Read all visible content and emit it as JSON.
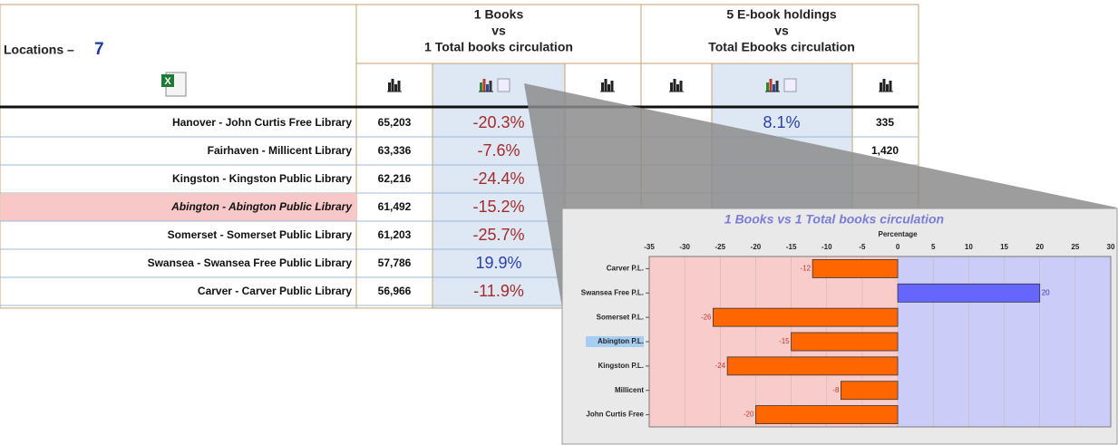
{
  "header": {
    "locations_label": "Locations –",
    "locations_count": "7",
    "groups": [
      {
        "lines": [
          "1 Books",
          "vs",
          "1 Total books circulation"
        ]
      },
      {
        "lines": [
          "5 E-book holdings",
          "vs",
          "Total Ebooks circulation"
        ]
      }
    ]
  },
  "table": {
    "selected_row": 3,
    "rows": [
      {
        "name": "Hanover - John Curtis Free Library",
        "count": "65,203",
        "pct": "-20.3%",
        "ebook_pct": "8.1%",
        "ebook_circ": "335"
      },
      {
        "name": "Fairhaven - Millicent Library",
        "count": "63,336",
        "pct": "-7.6%",
        "ebook_circ": "1,420"
      },
      {
        "name": "Kingston - Kingston Public Library",
        "count": "62,216",
        "pct": "-24.4%"
      },
      {
        "name": "Abington - Abington Public Library",
        "count": "61,492",
        "pct": "-15.2%"
      },
      {
        "name": "Somerset - Somerset Public Library",
        "count": "61,203",
        "pct": "-25.7%"
      },
      {
        "name": "Swansea - Swansea Free Public Library",
        "count": "57,786",
        "pct": "19.9%"
      },
      {
        "name": "Carver - Carver Public Library",
        "count": "56,966",
        "pct": "-11.9%"
      }
    ]
  },
  "chart_data": {
    "type": "hbar",
    "title": "1 Books vs 1 Total books circulation",
    "x_label": "Percentage",
    "categories": [
      "Carver P.L.",
      "Swansea Free P.L.",
      "Somerset P.L.",
      "Abington P.L.",
      "Kingston P.L.",
      "Millicent",
      "John Curtis Free"
    ],
    "values": [
      -12,
      20,
      -26,
      -15,
      -24,
      -8,
      -20
    ],
    "negative_color": "#ff6600",
    "positive_color": "#6666ff",
    "highlight_index": 3,
    "xlim": [
      -35,
      30
    ],
    "xticks": [
      -35,
      -30,
      -25,
      -20,
      -15,
      -10,
      -5,
      0,
      5,
      10,
      15,
      20,
      25,
      30
    ],
    "grid": true
  }
}
